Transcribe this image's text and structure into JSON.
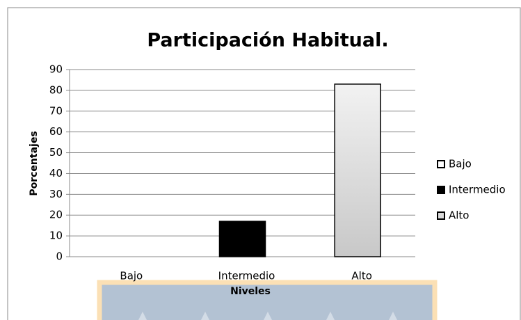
{
  "chart_data": {
    "type": "bar",
    "title": "Participación Habitual.",
    "categories": [
      "Bajo",
      "Intermedio",
      "Alto"
    ],
    "values": [
      0,
      17,
      83
    ],
    "colors": [
      "#ffffff",
      "#000000",
      "#c8c8c8"
    ],
    "x_label": "Niveles",
    "y_label": "Porcentajes",
    "ylim": [
      0,
      90
    ],
    "yticks": [
      0,
      10,
      20,
      30,
      40,
      50,
      60,
      70,
      80,
      90
    ],
    "grid": true,
    "legend": "right"
  }
}
